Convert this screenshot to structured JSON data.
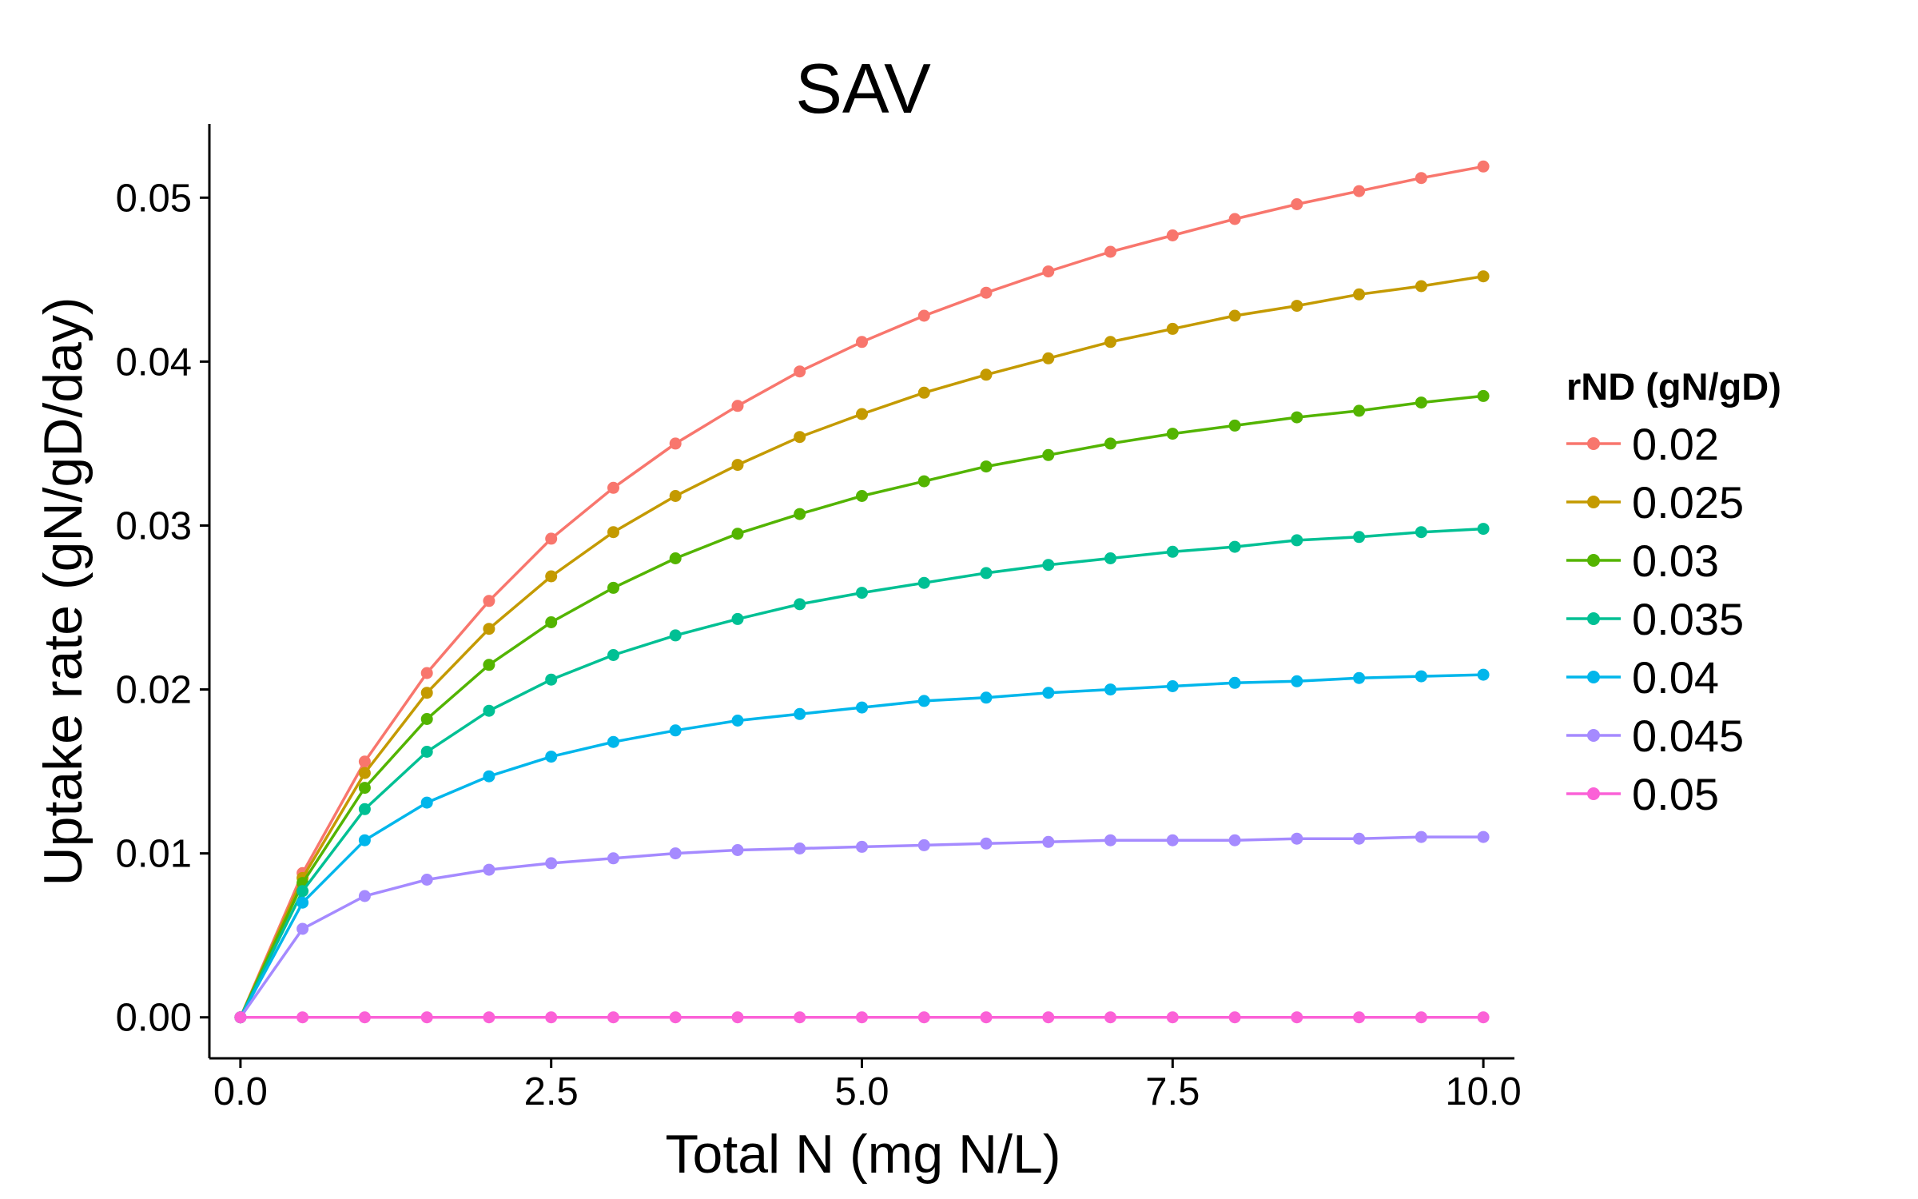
{
  "chart_data": {
    "type": "line",
    "title": "SAV",
    "xlabel": "Total N (mg N/L)",
    "ylabel": "Uptake rate (gN/gD/day)",
    "xlim": [
      -0.25,
      10.25
    ],
    "ylim": [
      -0.0025,
      0.0545
    ],
    "x_ticks": [
      0.0,
      2.5,
      5.0,
      7.5,
      10.0
    ],
    "x_tick_labels": [
      "0.0",
      "2.5",
      "5.0",
      "7.5",
      "10.0"
    ],
    "y_ticks": [
      0.0,
      0.01,
      0.02,
      0.03,
      0.04,
      0.05
    ],
    "y_tick_labels": [
      "0.00",
      "0.01",
      "0.02",
      "0.03",
      "0.04",
      "0.05"
    ],
    "grid": false,
    "legend": {
      "title": "rND (gN/gD)",
      "position": "right"
    },
    "x": [
      0,
      0.5,
      1,
      1.5,
      2,
      2.5,
      3,
      3.5,
      4,
      4.5,
      5,
      5.5,
      6,
      6.5,
      7,
      7.5,
      8,
      8.5,
      9,
      9.5,
      10
    ],
    "series": [
      {
        "name": "0.02",
        "color": "#F8766D",
        "values": [
          0,
          0.0088,
          0.0156,
          0.021,
          0.0254,
          0.0292,
          0.0323,
          0.035,
          0.0373,
          0.0394,
          0.0412,
          0.0428,
          0.0442,
          0.0455,
          0.0467,
          0.0477,
          0.0487,
          0.0496,
          0.0504,
          0.0512,
          0.0519
        ]
      },
      {
        "name": "0.025",
        "color": "#C49A00",
        "values": [
          0,
          0.0085,
          0.0149,
          0.0198,
          0.0237,
          0.0269,
          0.0296,
          0.0318,
          0.0337,
          0.0354,
          0.0368,
          0.0381,
          0.0392,
          0.0402,
          0.0412,
          0.042,
          0.0428,
          0.0434,
          0.0441,
          0.0446,
          0.0452
        ]
      },
      {
        "name": "0.03",
        "color": "#53B400",
        "values": [
          0,
          0.0082,
          0.014,
          0.0182,
          0.0215,
          0.0241,
          0.0262,
          0.028,
          0.0295,
          0.0307,
          0.0318,
          0.0327,
          0.0336,
          0.0343,
          0.035,
          0.0356,
          0.0361,
          0.0366,
          0.037,
          0.0375,
          0.0379
        ]
      },
      {
        "name": "0.035",
        "color": "#00C094",
        "values": [
          0,
          0.0077,
          0.0127,
          0.0162,
          0.0187,
          0.0206,
          0.0221,
          0.0233,
          0.0243,
          0.0252,
          0.0259,
          0.0265,
          0.0271,
          0.0276,
          0.028,
          0.0284,
          0.0287,
          0.0291,
          0.0293,
          0.0296,
          0.0298
        ]
      },
      {
        "name": "0.04",
        "color": "#00B6EB",
        "values": [
          0,
          0.007,
          0.0108,
          0.0131,
          0.0147,
          0.0159,
          0.0168,
          0.0175,
          0.0181,
          0.0185,
          0.0189,
          0.0193,
          0.0195,
          0.0198,
          0.02,
          0.0202,
          0.0204,
          0.0205,
          0.0207,
          0.0208,
          0.0209
        ]
      },
      {
        "name": "0.045",
        "color": "#A58AFF",
        "values": [
          0,
          0.0054,
          0.0074,
          0.0084,
          0.009,
          0.0094,
          0.0097,
          0.01,
          0.0102,
          0.0103,
          0.0104,
          0.0105,
          0.0106,
          0.0107,
          0.0108,
          0.0108,
          0.0108,
          0.0109,
          0.0109,
          0.011,
          0.011
        ]
      },
      {
        "name": "0.05",
        "color": "#FB61D7",
        "values": [
          0,
          0,
          0,
          0,
          0,
          0,
          0,
          0,
          0,
          0,
          0,
          0,
          0,
          0,
          0,
          0,
          0,
          0,
          0,
          0,
          0
        ]
      }
    ]
  }
}
